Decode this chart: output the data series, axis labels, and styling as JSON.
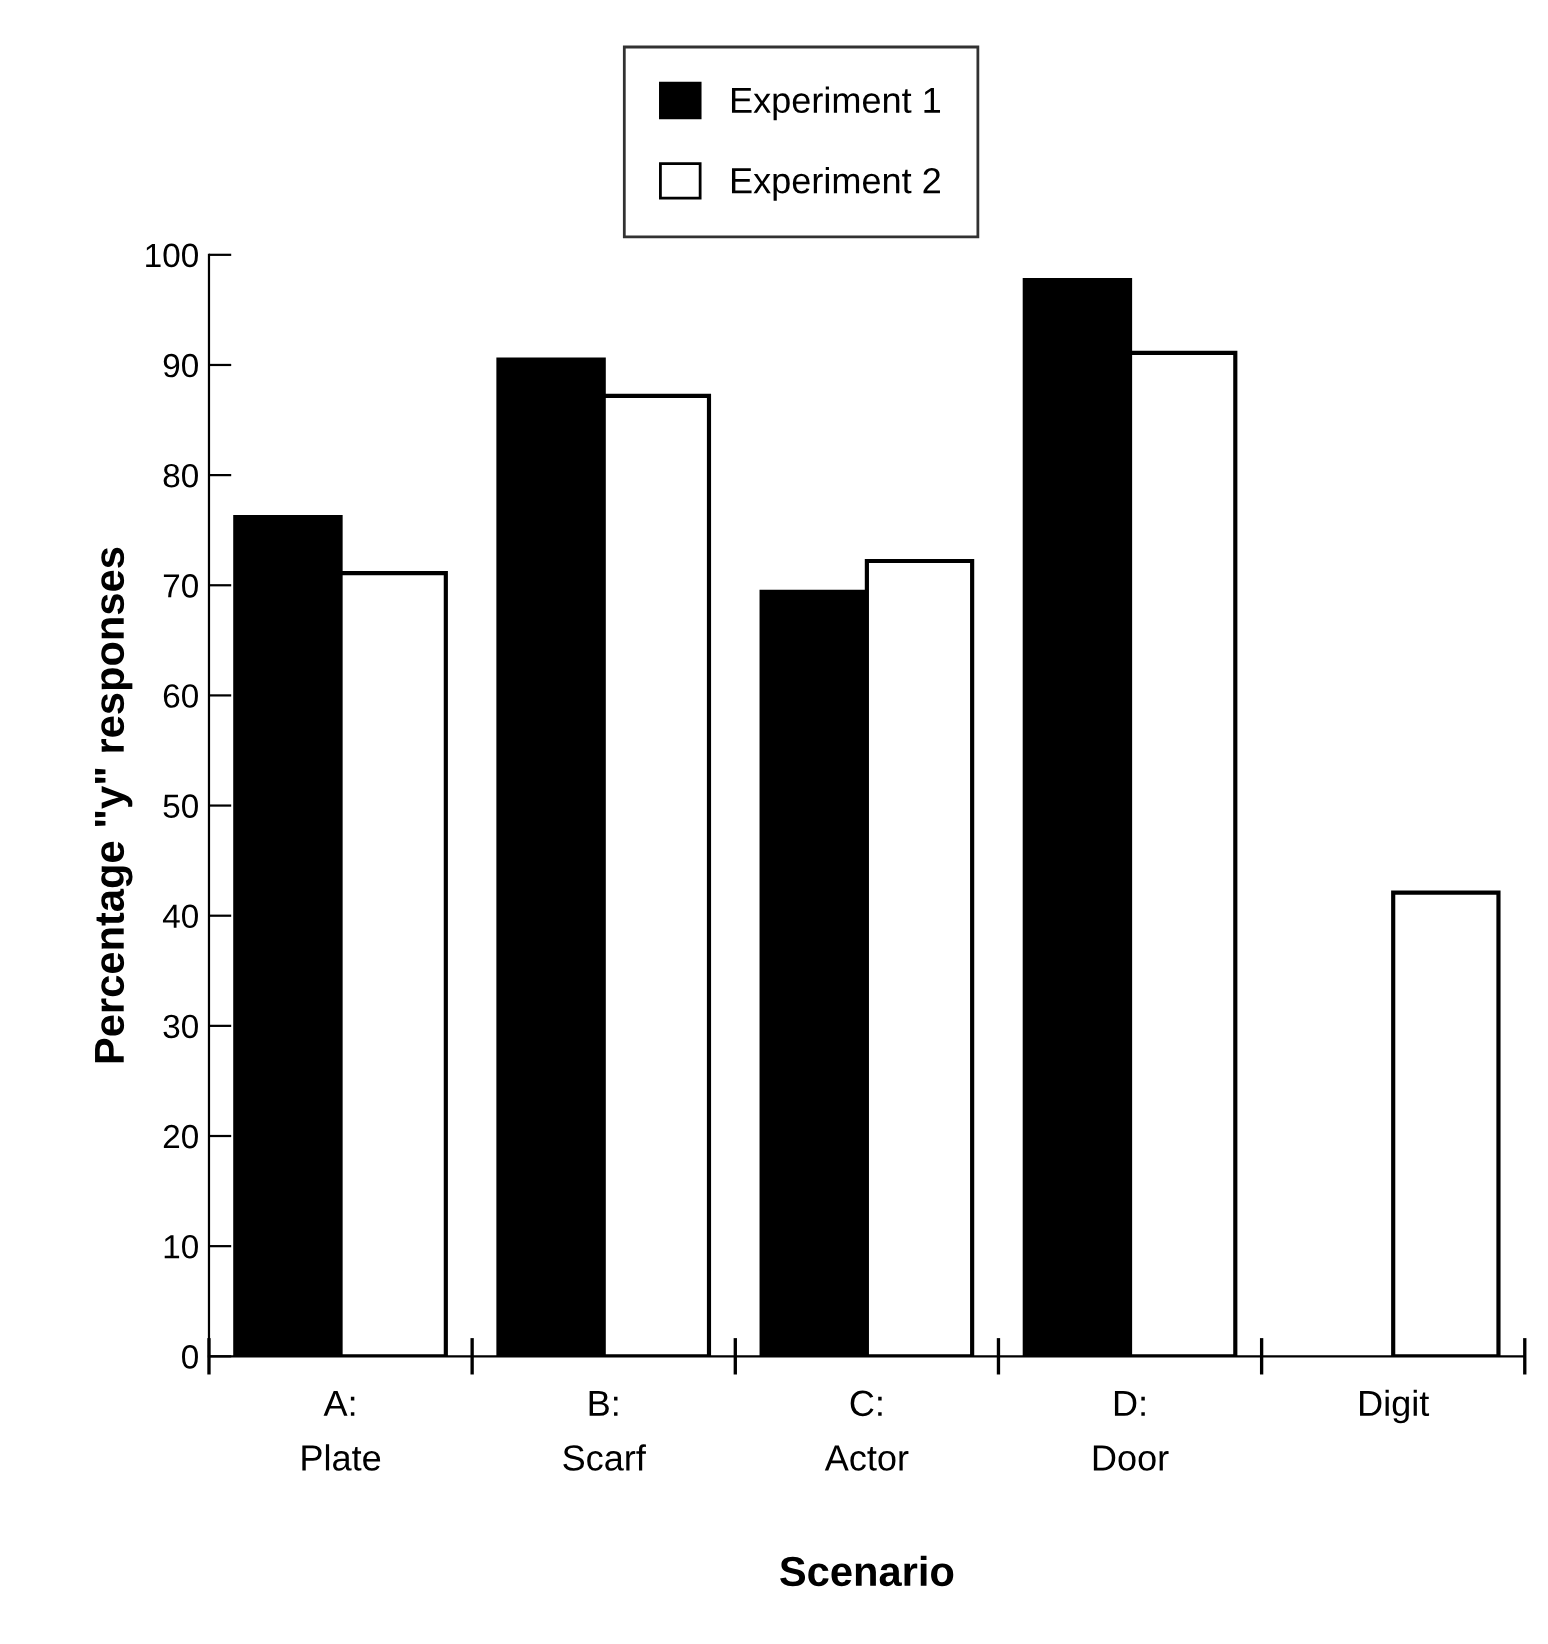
{
  "chart_data": {
    "type": "bar",
    "xlabel": "Scenario",
    "ylabel": "Percentage \"y\" responses",
    "categories": [
      "A:\nPlate",
      "B:\nScarf",
      "C:\nActor",
      "D:\nDoor",
      "Digit"
    ],
    "series": [
      {
        "name": "Experiment 1",
        "color": "#000000",
        "values": [
          76.2,
          90.5,
          69.4,
          97.7,
          null
        ]
      },
      {
        "name": "Experiment 2",
        "color": "#ffffff",
        "values": [
          71.1,
          87.2,
          72.2,
          91.1,
          42.1
        ]
      }
    ],
    "ylim": [
      0,
      100
    ],
    "yticks": [
      0,
      10,
      20,
      30,
      40,
      50,
      60,
      70,
      80,
      90,
      100
    ],
    "grid": false,
    "legend": "top"
  }
}
